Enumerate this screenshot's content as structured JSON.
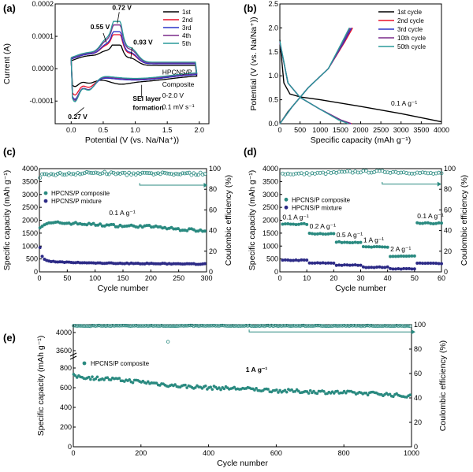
{
  "panel_labels": [
    "(a)",
    "(b)",
    "(c)",
    "(d)",
    "(e)"
  ],
  "colors": {
    "cycle_1st": "#000000",
    "cycle_2nd": "#e8102a",
    "cycle_3rd": "#2b34c8",
    "cycle_4th_10th": "#7a2a8a",
    "cycle_5th_50th": "#2a9a9a",
    "composite": "#2a8a80",
    "mixture": "#2c2a86"
  },
  "chart_data": [
    {
      "id": "a",
      "type": "line",
      "xlabel": "Potential (V (vs. Na/Na⁺))",
      "ylabel": "Current (A)",
      "xlim": [
        -0.25,
        2.15
      ],
      "ylim": [
        -0.00017,
        0.0002
      ],
      "xticks": [
        0.0,
        0.5,
        1.0,
        1.5,
        2.0
      ],
      "xtick_labels": [
        "0.0",
        "0.5",
        "1.0",
        "1.5",
        "2.0"
      ],
      "yticks": [
        -0.0001,
        0.0,
        0.0001,
        0.0002
      ],
      "ytick_labels": [
        "-0.0001",
        "0.0000",
        "0.0001",
        "0.0002"
      ],
      "series": [
        {
          "name": "1st",
          "color": "#000000"
        },
        {
          "name": "2nd",
          "color": "#e8102a"
        },
        {
          "name": "3rd",
          "color": "#2b34c8"
        },
        {
          "name": "4th",
          "color": "#7a2a8a"
        },
        {
          "name": "5th",
          "color": "#2a9a9a"
        }
      ],
      "annotations": [
        "0.72 V",
        "0.55 V",
        "0.93 V",
        "0.27 V",
        "SEI layer formation",
        "HPCNS/P Composite",
        "0-2.0 V",
        "0.1 mV s⁻¹"
      ],
      "legend": "top-right"
    },
    {
      "id": "b",
      "type": "line",
      "xlabel": "Specific capacity (mAh g⁻¹)",
      "ylabel": "Potential (V (vs. Na/Na⁺))",
      "xlim": [
        0,
        4000
      ],
      "ylim": [
        0,
        2.5
      ],
      "xticks": [
        0,
        500,
        1000,
        1500,
        2000,
        2500,
        3000,
        3500,
        4000
      ],
      "yticks": [
        0.0,
        0.5,
        1.0,
        1.5,
        2.0,
        2.5
      ],
      "ytick_labels": [
        "0.0",
        "0.5",
        "1.0",
        "1.5",
        "2.0",
        "2.5"
      ],
      "series": [
        {
          "name": "1st  cycle",
          "color": "#000000",
          "discharge": [
            [
              0,
              1.75
            ],
            [
              100,
              0.85
            ],
            [
              250,
              0.62
            ],
            [
              500,
              0.56
            ],
            [
              1000,
              0.5
            ],
            [
              2000,
              0.36
            ],
            [
              3000,
              0.21
            ],
            [
              4000,
              0.04
            ]
          ],
          "charge": [
            [
              0,
              0.0
            ],
            [
              200,
              0.25
            ],
            [
              500,
              0.55
            ]
          ]
        },
        {
          "name": "2nd  cycle",
          "color": "#e8102a",
          "discharge": [
            [
              0,
              1.7
            ],
            [
              200,
              0.85
            ],
            [
              500,
              0.55
            ],
            [
              1000,
              0.3
            ],
            [
              1500,
              0.08
            ],
            [
              1780,
              0.0
            ]
          ],
          "charge": [
            [
              0,
              0.0
            ],
            [
              300,
              0.35
            ],
            [
              700,
              0.75
            ],
            [
              1200,
              1.15
            ],
            [
              1600,
              1.7
            ],
            [
              1800,
              2.0
            ]
          ]
        },
        {
          "name": "3rd  cycle",
          "color": "#2b34c8",
          "discharge": [
            [
              0,
              1.7
            ],
            [
              200,
              0.85
            ],
            [
              500,
              0.55
            ],
            [
              1000,
              0.3
            ],
            [
              1500,
              0.08
            ],
            [
              1760,
              0.0
            ]
          ],
          "charge": [
            [
              0,
              0.0
            ],
            [
              300,
              0.35
            ],
            [
              700,
              0.75
            ],
            [
              1200,
              1.15
            ],
            [
              1580,
              1.7
            ],
            [
              1770,
              2.0
            ]
          ]
        },
        {
          "name": "10th cycle",
          "color": "#7a2a8a",
          "discharge": [
            [
              0,
              1.7
            ],
            [
              200,
              0.85
            ],
            [
              500,
              0.55
            ],
            [
              1000,
              0.3
            ],
            [
              1500,
              0.08
            ],
            [
              1740,
              0.0
            ]
          ],
          "charge": [
            [
              0,
              0.0
            ],
            [
              300,
              0.35
            ],
            [
              700,
              0.75
            ],
            [
              1200,
              1.15
            ],
            [
              1560,
              1.7
            ],
            [
              1740,
              2.0
            ]
          ]
        },
        {
          "name": "50th cycle",
          "color": "#2a9a9a",
          "discharge": [
            [
              0,
              1.72
            ],
            [
              200,
              0.85
            ],
            [
              500,
              0.55
            ],
            [
              1000,
              0.3
            ],
            [
              1450,
              0.08
            ],
            [
              1700,
              0.0
            ]
          ],
          "charge": [
            [
              0,
              0.0
            ],
            [
              300,
              0.35
            ],
            [
              700,
              0.75
            ],
            [
              1200,
              1.15
            ],
            [
              1540,
              1.7
            ],
            [
              1720,
              2.0
            ]
          ]
        }
      ],
      "annotations": [
        "0.1 A g⁻¹"
      ],
      "legend": "top-right"
    },
    {
      "id": "c",
      "type": "scatter",
      "xlabel": "Cycle number",
      "ylabel": "Specific capacity (mAh g⁻¹)",
      "ylabel_right": "Coulombic efficiency (%)",
      "xlim": [
        0,
        300
      ],
      "ylim": [
        0,
        4000
      ],
      "ylim_right": [
        0,
        100
      ],
      "xticks": [
        0,
        50,
        100,
        150,
        200,
        250,
        300
      ],
      "yticks": [
        0,
        500,
        1000,
        1500,
        2000,
        2500,
        3000,
        3500,
        4000
      ],
      "yticks_right": [
        0,
        20,
        40,
        60,
        80,
        100
      ],
      "series": [
        {
          "name": "HPCNS/P composite",
          "color": "#2a8a80",
          "capacity": [
            [
              1,
              1750
            ],
            [
              10,
              1850
            ],
            [
              30,
              1900
            ],
            [
              60,
              1880
            ],
            [
              100,
              1830
            ],
            [
              150,
              1780
            ],
            [
              200,
              1760
            ],
            [
              250,
              1650
            ],
            [
              300,
              1600
            ]
          ],
          "efficiency": [
            [
              1,
              90
            ],
            [
              5,
              94
            ],
            [
              50,
              95
            ],
            [
              100,
              96
            ],
            [
              150,
              95
            ],
            [
              200,
              95
            ],
            [
              250,
              95
            ],
            [
              300,
              95
            ]
          ]
        },
        {
          "name": "HPCNS/P mixture",
          "color": "#2c2a86",
          "capacity": [
            [
              1,
              950
            ],
            [
              5,
              600
            ],
            [
              10,
              450
            ],
            [
              30,
              380
            ],
            [
              100,
              340
            ],
            [
              200,
              320
            ],
            [
              300,
              300
            ]
          ]
        }
      ],
      "annotations": [
        "0.1 A g⁻¹"
      ],
      "legend": "center-left"
    },
    {
      "id": "d",
      "type": "scatter",
      "xlabel": "Cycle number",
      "ylabel": "Specific capacity (mAh g⁻¹)",
      "ylabel_right": "Coulombic efficiency (%)",
      "xlim": [
        0,
        60
      ],
      "ylim": [
        0,
        4000
      ],
      "ylim_right": [
        0,
        100
      ],
      "xticks": [
        0,
        10,
        20,
        30,
        40,
        50,
        60
      ],
      "yticks": [
        0,
        500,
        1000,
        1500,
        2000,
        2500,
        3000,
        3500,
        4000
      ],
      "yticks_right": [
        0,
        20,
        40,
        60,
        80,
        100
      ],
      "series": [
        {
          "name": "HPCNS/P composite",
          "color": "#2a8a80",
          "capacity_steps": [
            [
              1,
              10,
              1850
            ],
            [
              11,
              20,
              1480
            ],
            [
              21,
              30,
              1150
            ],
            [
              31,
              40,
              960
            ],
            [
              41,
              50,
              600
            ],
            [
              51,
              60,
              1880
            ]
          ],
          "efficiency": [
            [
              1,
              95
            ],
            [
              10,
              95
            ],
            [
              20,
              96
            ],
            [
              30,
              97
            ],
            [
              40,
              97
            ],
            [
              50,
              96
            ],
            [
              60,
              95
            ]
          ]
        },
        {
          "name": "HPCNS/P mixture",
          "color": "#2c2a86",
          "capacity_steps": [
            [
              1,
              10,
              450
            ],
            [
              11,
              20,
              340
            ],
            [
              21,
              30,
              260
            ],
            [
              31,
              40,
              180
            ],
            [
              41,
              50,
              120
            ],
            [
              51,
              60,
              330
            ]
          ]
        }
      ],
      "annotations": [
        "0.1 A g⁻¹",
        "0.2 A g⁻¹",
        "0.5 A g⁻¹",
        "1 A g⁻¹",
        "2 A g⁻¹",
        "0.1 A g⁻¹"
      ],
      "legend": "center-left"
    },
    {
      "id": "e",
      "type": "scatter",
      "xlabel": "Cycle number",
      "ylabel": "Specific capacity (mAh g⁻¹)",
      "ylabel_right": "Coulombic efficiency (%)",
      "xlim": [
        0,
        1000
      ],
      "xticks": [
        0,
        200,
        400,
        600,
        800,
        1000
      ],
      "yticks_labels": [
        "0",
        "200",
        "400",
        "600",
        "800",
        "3600",
        "4000"
      ],
      "yticks_right": [
        0,
        20,
        40,
        60,
        80,
        100
      ],
      "series": [
        {
          "name": "HPCNS/P composite",
          "color": "#2a8a80",
          "capacity": [
            [
              1,
              720
            ],
            [
              50,
              700
            ],
            [
              100,
              690
            ],
            [
              200,
              660
            ],
            [
              300,
              620
            ],
            [
              400,
              600
            ],
            [
              500,
              590
            ],
            [
              600,
              570
            ],
            [
              700,
              560
            ],
            [
              800,
              550
            ],
            [
              900,
              540
            ],
            [
              1000,
              510
            ]
          ],
          "efficiency": [
            [
              1,
              99
            ],
            [
              500,
              99
            ],
            [
              1000,
              99
            ]
          ]
        }
      ],
      "annotations": [
        "1 A g⁻¹"
      ],
      "legend": "top-left"
    }
  ]
}
